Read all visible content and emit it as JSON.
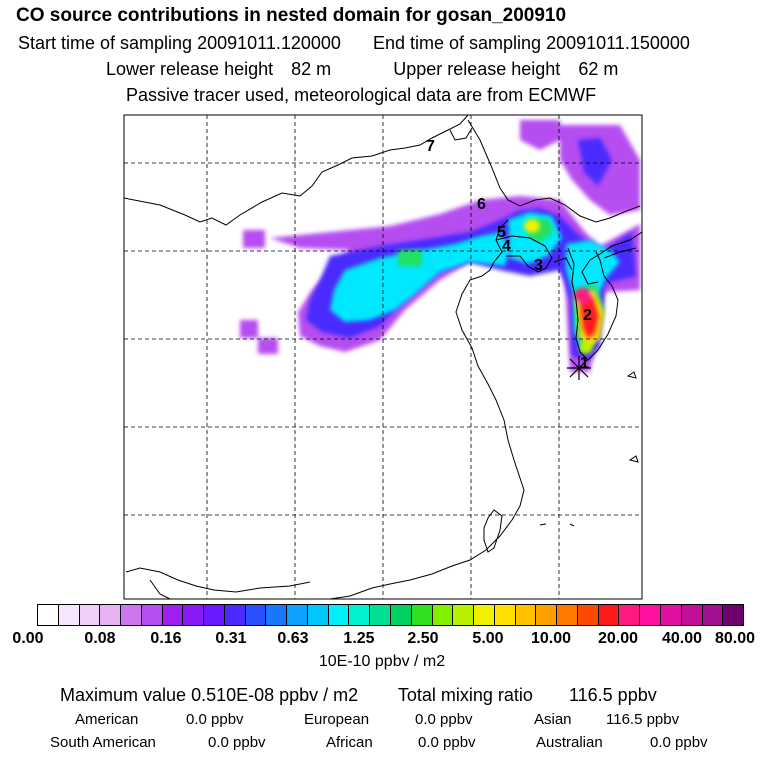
{
  "header": {
    "title": "CO  source contributions in nested domain for gosan_200910",
    "start_label": "Start time of sampling",
    "start_value": "20091011.120000",
    "end_label": "End time of sampling",
    "end_value": "20091011.150000",
    "lower_label": "Lower release height",
    "lower_value": "82 m",
    "upper_label": "Upper release height",
    "upper_value": "62 m",
    "note": "Passive tracer used, meteorological data are from ECMWF"
  },
  "map": {
    "markers": [
      "1",
      "2",
      "3",
      "4",
      "5",
      "6",
      "7"
    ],
    "release_site_icon": "asterisk-icon"
  },
  "colorbar": {
    "colors": [
      "#ffffff",
      "#f7e6fb",
      "#efcef8",
      "#e6b4f4",
      "#cc77ee",
      "#b64ef0",
      "#a020f0",
      "#8a1af5",
      "#6a1aff",
      "#4a2aff",
      "#2a50ff",
      "#1a78ff",
      "#10a0ff",
      "#00c8ff",
      "#00f0ff",
      "#00f0d0",
      "#00e090",
      "#00d060",
      "#30e020",
      "#80f000",
      "#b8f000",
      "#f0f000",
      "#ffe000",
      "#ffc000",
      "#ffa000",
      "#ff7800",
      "#ff4800",
      "#ff1a1a",
      "#ff1a80",
      "#ff10a0",
      "#e010a0",
      "#c01098",
      "#a01090",
      "#700070"
    ],
    "tick_labels": [
      "0.00",
      "0.08",
      "0.16",
      "0.31",
      "0.63",
      "1.25",
      "2.50",
      "5.00",
      "10.00",
      "20.00",
      "40.00",
      "80.00"
    ],
    "units": "10E-10 ppbv / m2"
  },
  "stats": {
    "max_label": "Maximum value",
    "max_value": "0.510E-08 ppbv / m2",
    "total_label": "Total mixing ratio",
    "total_value": "116.5 ppbv",
    "regions": [
      {
        "name": "American",
        "value": "0.0 ppbv"
      },
      {
        "name": "European",
        "value": "0.0 ppbv"
      },
      {
        "name": "Asian",
        "value": "116.5 ppbv"
      },
      {
        "name": "South American",
        "value": "0.0 ppbv"
      },
      {
        "name": "African",
        "value": "0.0 ppbv"
      },
      {
        "name": "Australian",
        "value": "0.0 ppbv"
      }
    ]
  }
}
